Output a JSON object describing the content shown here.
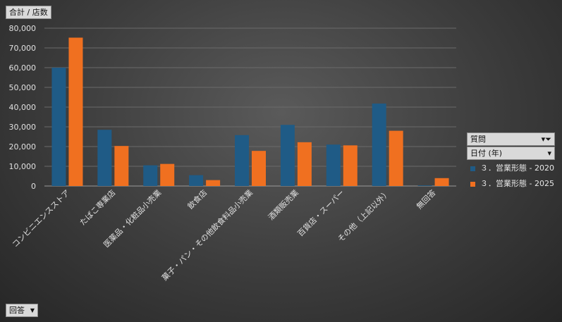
{
  "measure_button": "合計 / 店数",
  "filter_button": "回答",
  "legend": {
    "header": "質問",
    "subheader": "日付 (年)",
    "filter_icon": "filter-icon",
    "dropdown_icon": "chevron-down-icon"
  },
  "chart_data": {
    "type": "bar",
    "categories": [
      "コンビニエンスストア",
      "たばこ専業店",
      "医薬品・化粧品小売業",
      "飲食店",
      "菓子・パン・その他飲食料品小売業",
      "酒類販売業",
      "百貨店・スーパー",
      "その他（上記以外）",
      "無回答"
    ],
    "series": [
      {
        "name": "３．営業形態 - 2020",
        "color": "#1f5b86",
        "values": [
          60000,
          28500,
          10500,
          5500,
          25800,
          31000,
          21000,
          41800,
          300
        ]
      },
      {
        "name": "３．営業形態 - 2025",
        "color": "#f07020",
        "values": [
          75200,
          20300,
          11200,
          3000,
          17800,
          22200,
          20600,
          28000,
          4000
        ]
      }
    ],
    "ylim": [
      0,
      80000
    ],
    "yticks": [
      "0",
      "10,000",
      "20,000",
      "30,000",
      "40,000",
      "50,000",
      "60,000",
      "70,000",
      "80,000"
    ],
    "grid": true,
    "legend_position": "right"
  }
}
